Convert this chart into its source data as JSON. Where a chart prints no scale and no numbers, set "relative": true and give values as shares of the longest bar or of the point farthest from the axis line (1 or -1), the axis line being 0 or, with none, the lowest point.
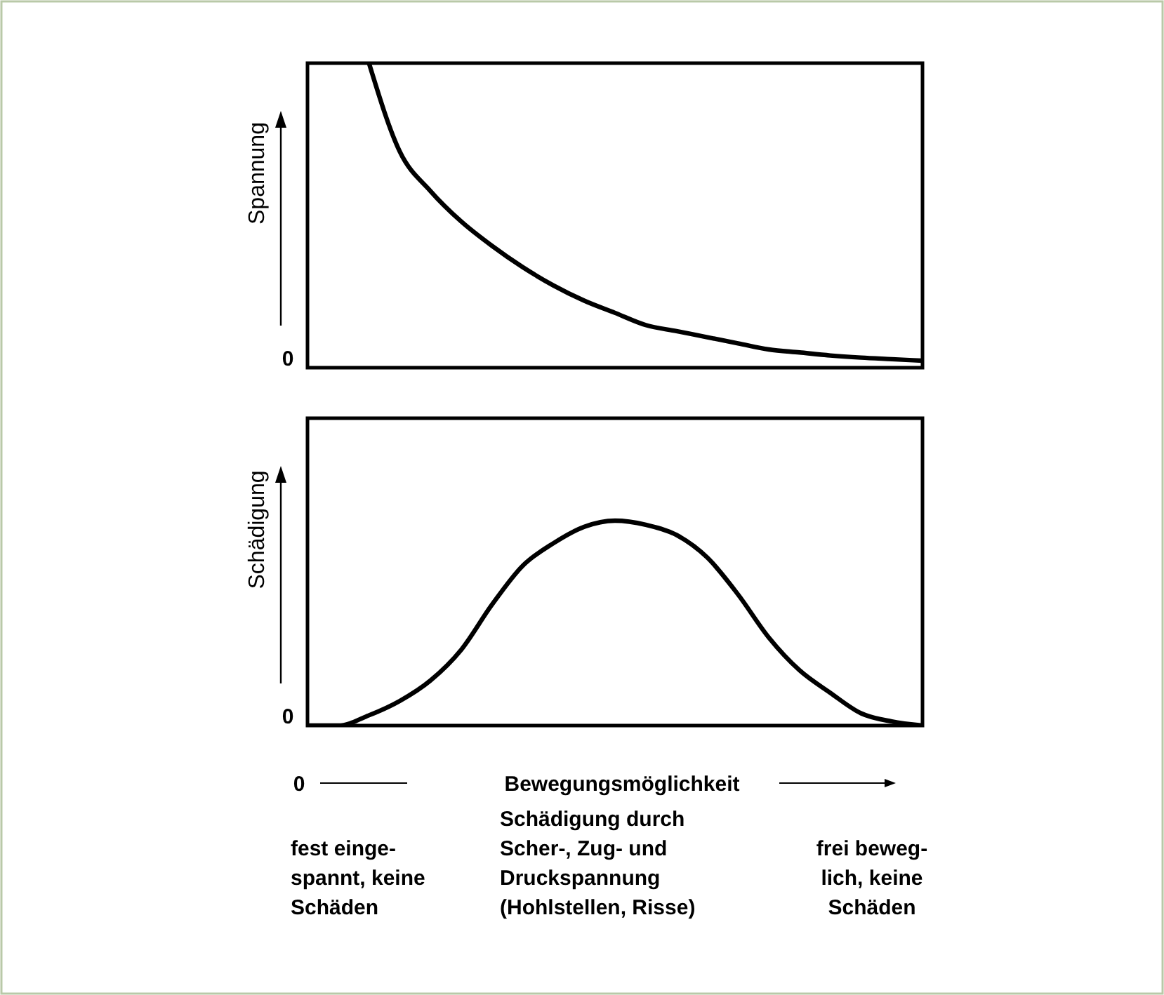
{
  "chart_data": [
    {
      "type": "line",
      "relative": true,
      "ylabel": "Spannung",
      "categories": [
        null,
        null,
        null,
        null,
        null,
        null,
        null,
        null,
        null,
        null,
        null,
        null,
        null,
        null,
        null,
        null,
        null,
        null,
        null,
        null,
        null
      ],
      "series": [
        {
          "color": "#000000",
          "values": [
            null,
            null,
            1,
            0.71,
            0.58,
            0.48,
            0.4,
            0.33,
            0.27,
            0.22,
            0.18,
            0.14,
            0.12,
            0.1,
            0.08,
            0.06,
            0.05,
            0.04,
            0.033,
            0.028,
            0.023
          ]
        }
      ],
      "annotations": [
        "0"
      ]
    },
    {
      "type": "line",
      "relative": true,
      "ylabel": "Schädigung",
      "xlabel": "Bewegungsmöglichkeit",
      "categories": [
        null,
        null,
        null,
        null,
        null,
        null,
        null,
        null,
        null,
        null,
        null,
        null,
        null,
        null,
        null,
        null,
        null,
        null,
        null,
        null,
        null
      ],
      "series": [
        {
          "color": "#000000",
          "values": [
            0,
            0,
            0.05,
            0.12,
            0.22,
            0.37,
            0.59,
            0.78,
            0.89,
            0.97,
            1,
            0.98,
            0.93,
            0.82,
            0.64,
            0.43,
            0.27,
            0.16,
            0.06,
            0.02,
            0
          ]
        }
      ],
      "annotations": [
        "0",
        "0",
        "fest einge-\nspannt, keine\nSchäden",
        "Schädigung durch\nScher-, Zug- und\nDruckspannung\n(Hohlstellen, Risse)",
        "frei beweg-\nlich, keine\nSchäden"
      ]
    }
  ]
}
